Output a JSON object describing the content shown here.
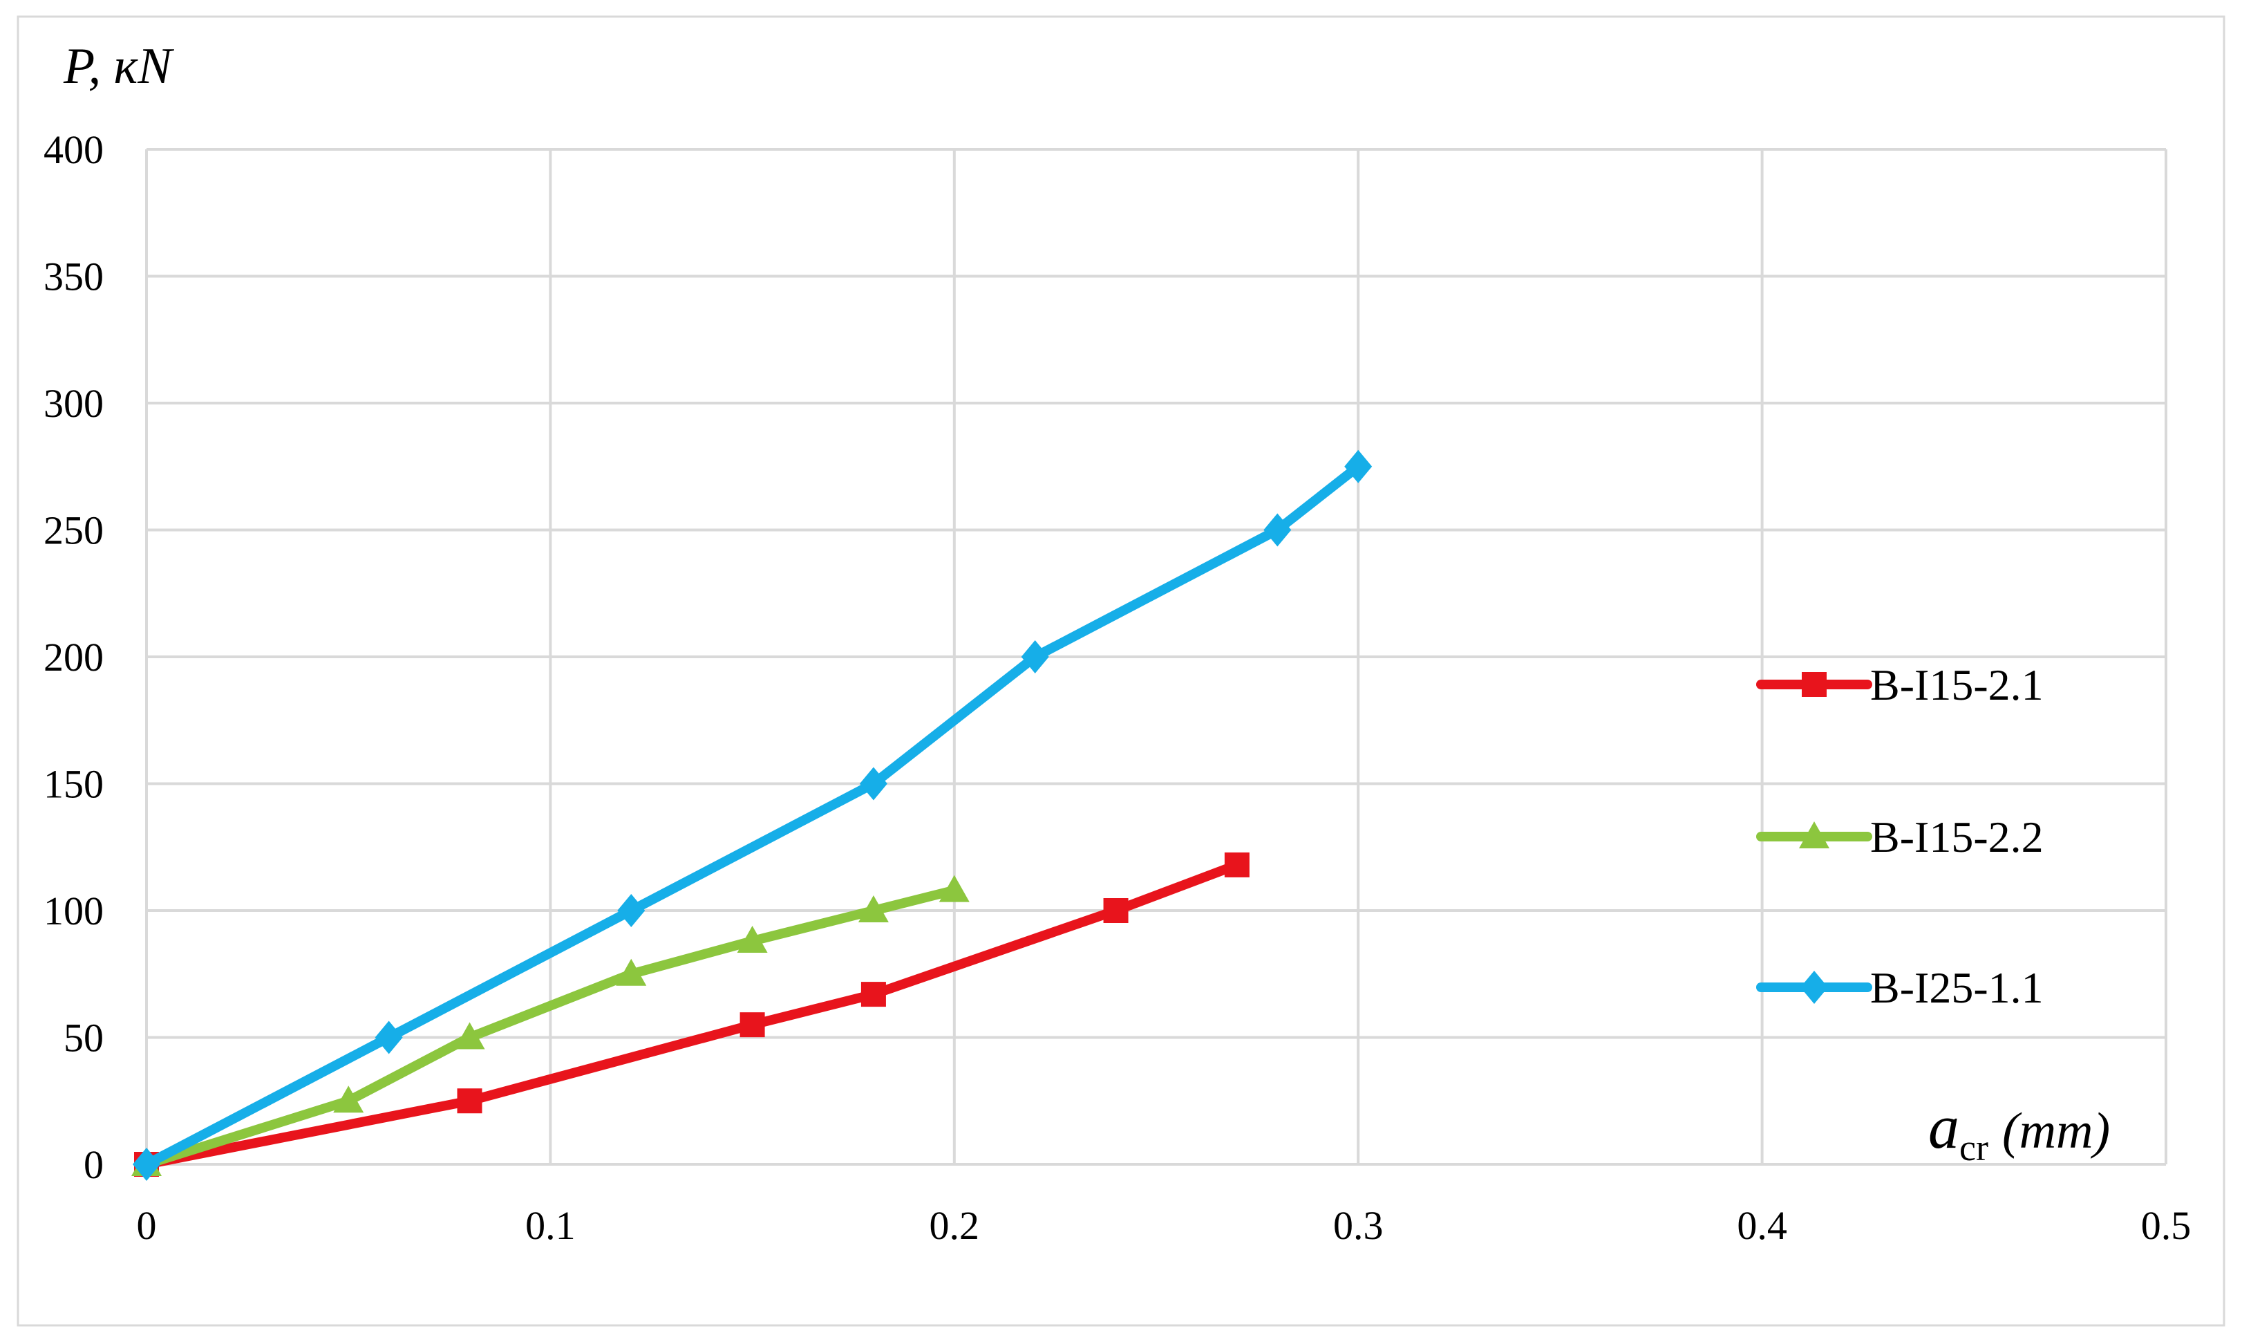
{
  "chart_data": {
    "type": "line",
    "title": "",
    "ylabel": "P, кN",
    "xlabel_main": "a",
    "xlabel_sub": "cr",
    "xlabel_unit": "(mm)",
    "xlim": [
      0,
      0.5
    ],
    "ylim": [
      0,
      400
    ],
    "x_ticks": [
      "0",
      "0.1",
      "0.2",
      "0.3",
      "0.4",
      "0.5"
    ],
    "y_ticks": [
      "0",
      "50",
      "100",
      "150",
      "200",
      "250",
      "300",
      "350",
      "400"
    ],
    "grid": true,
    "legend_position": "right",
    "series": [
      {
        "name": "B-I15-2.1",
        "color": "#e8141c",
        "marker": "square",
        "x": [
          0,
          0.08,
          0.15,
          0.18,
          0.24,
          0.27
        ],
        "y": [
          0,
          25,
          55,
          67,
          100,
          118
        ]
      },
      {
        "name": "B-I15-2.2",
        "color": "#8cc63e",
        "marker": "triangle",
        "x": [
          0,
          0.05,
          0.08,
          0.12,
          0.15,
          0.18,
          0.2
        ],
        "y": [
          0,
          25,
          50,
          75,
          88,
          100,
          108
        ]
      },
      {
        "name": "B-I25-1.1",
        "color": "#16aee8",
        "marker": "diamond",
        "x": [
          0,
          0.06,
          0.12,
          0.18,
          0.22,
          0.28,
          0.3
        ],
        "y": [
          0,
          50,
          100,
          150,
          200,
          250,
          275
        ]
      }
    ]
  }
}
